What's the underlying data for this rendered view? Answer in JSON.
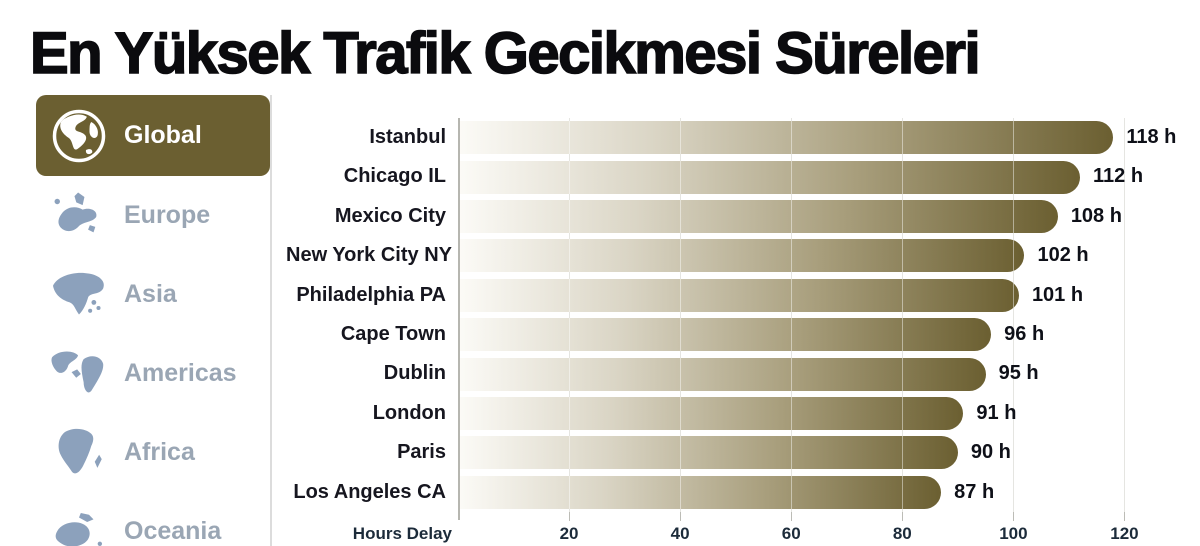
{
  "title": "En Yüksek Trafik Gecikmesi Süreleri",
  "sidebar": {
    "items": [
      {
        "label": "Global",
        "icon": "globe-icon",
        "active": true
      },
      {
        "label": "Europe",
        "icon": "europe-map-icon",
        "active": false
      },
      {
        "label": "Asia",
        "icon": "asia-map-icon",
        "active": false
      },
      {
        "label": "Americas",
        "icon": "americas-map-icon",
        "active": false
      },
      {
        "label": "Africa",
        "icon": "africa-map-icon",
        "active": false
      },
      {
        "label": "Oceania",
        "icon": "oceania-map-icon",
        "active": false
      }
    ]
  },
  "chart_data": {
    "type": "bar",
    "orientation": "horizontal",
    "title": "En Yüksek Trafik Gecikmesi Süreleri",
    "categories": [
      "Istanbul",
      "Chicago IL",
      "Mexico City",
      "New York City NY",
      "Philadelphia PA",
      "Cape Town",
      "Dublin",
      "London",
      "Paris",
      "Los Angeles CA"
    ],
    "values": [
      118,
      112,
      108,
      102,
      101,
      96,
      95,
      91,
      90,
      87
    ],
    "value_labels": [
      "118 h",
      "112 h",
      "108 h",
      "102 h",
      "101 h",
      "96 h",
      "95 h",
      "91 h",
      "90 h",
      "87 h"
    ],
    "xlabel": "Hours Delay",
    "xticks": [
      20,
      40,
      60,
      80,
      100,
      120
    ],
    "xlim": [
      0,
      130
    ],
    "grid": true,
    "legend": null,
    "bar_gradient_start": "#fcfbf7",
    "bar_gradient_end": "#6b5f31"
  },
  "colors": {
    "accent_olive": "#6b5f31",
    "sidebar_icon_blue_gray": "#8ca1bc",
    "sidebar_label_gray": "#9aa6b4",
    "active_label": "#ffffff",
    "axis_text": "#1c2b3a",
    "category_text": "#16161f",
    "gridline": "#cfcfc9",
    "background": "#ffffff"
  }
}
